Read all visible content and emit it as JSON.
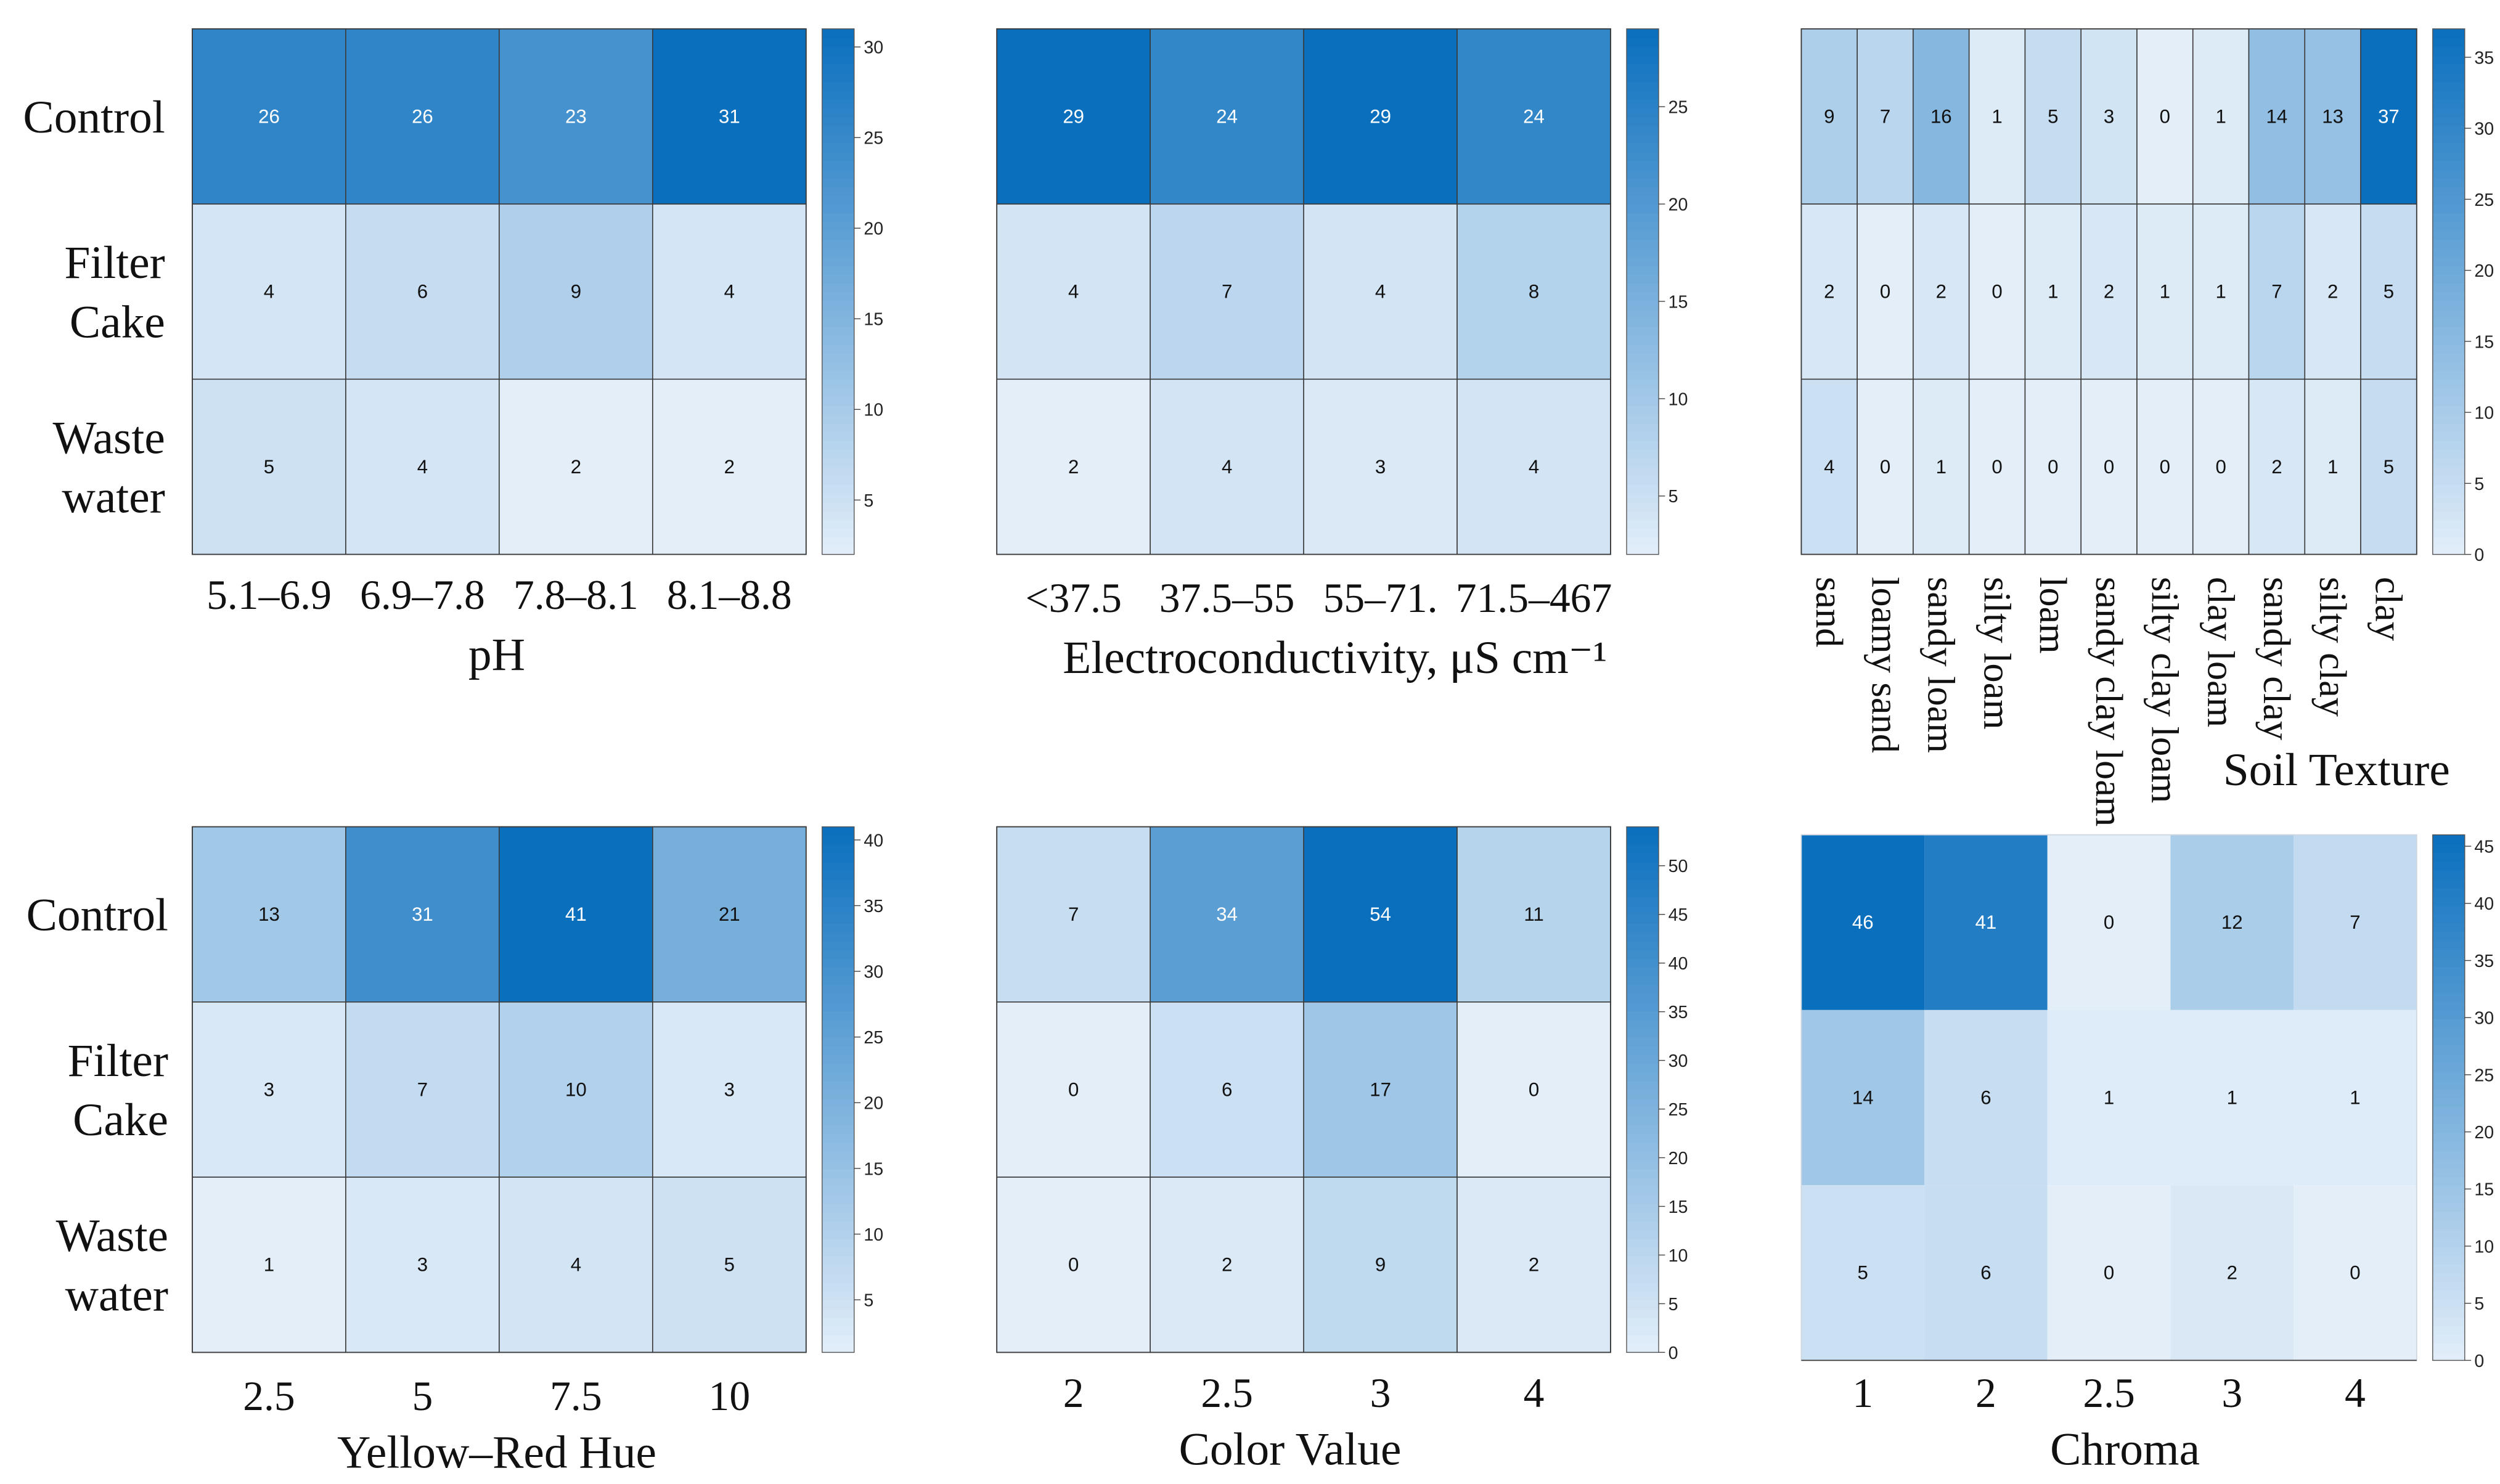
{
  "row_labels": [
    [
      "Control"
    ],
    [
      "Filter",
      "Cake"
    ],
    [
      "Waste",
      "water"
    ]
  ],
  "color_scale": {
    "low": "#e3eef9",
    "high": "#0a6fbd"
  },
  "chart_data": [
    {
      "type": "heatmap",
      "xlabel": "pH",
      "categories": [
        "5.1–6.9",
        "6.9–7.8",
        "7.8–8.1",
        "8.1–8.8"
      ],
      "values": [
        [
          26,
          26,
          23,
          31
        ],
        [
          4,
          6,
          9,
          4
        ],
        [
          5,
          4,
          2,
          2
        ]
      ],
      "colorbar": {
        "ticks": [
          5,
          10,
          15,
          20,
          25,
          30
        ],
        "range": [
          2,
          31
        ]
      }
    },
    {
      "type": "heatmap",
      "xlabel": "Electroconductivity, μS cm⁻¹",
      "categories": [
        "<37.5",
        "37.5–55",
        "55–71.",
        "71.5–467"
      ],
      "values": [
        [
          29,
          24,
          29,
          24
        ],
        [
          4,
          7,
          4,
          8
        ],
        [
          2,
          4,
          3,
          4
        ]
      ],
      "colorbar": {
        "ticks": [
          5,
          10,
          15,
          20,
          25
        ],
        "range": [
          2,
          29
        ]
      }
    },
    {
      "type": "heatmap",
      "xlabel": "Soil Texture",
      "categories": [
        "sand",
        "loamy sand",
        "sandy loam",
        "silty loam",
        "loam",
        "sandy clay loam",
        "silty clay loam",
        "clay loam",
        "sandy clay",
        "silty clay",
        "clay"
      ],
      "values": [
        [
          9,
          7,
          16,
          1,
          5,
          3,
          0,
          1,
          14,
          13,
          37
        ],
        [
          2,
          0,
          2,
          0,
          1,
          2,
          1,
          1,
          7,
          2,
          5
        ],
        [
          4,
          0,
          1,
          0,
          0,
          0,
          0,
          0,
          2,
          1,
          5
        ]
      ],
      "colorbar": {
        "ticks": [
          0,
          5,
          10,
          15,
          20,
          25,
          30,
          35
        ],
        "range": [
          0,
          37
        ]
      }
    },
    {
      "type": "heatmap",
      "xlabel": "Yellow–Red Hue",
      "categories": [
        "2.5",
        "5",
        "7.5",
        "10"
      ],
      "values": [
        [
          13,
          31,
          41,
          21
        ],
        [
          3,
          7,
          10,
          3
        ],
        [
          1,
          3,
          4,
          5
        ]
      ],
      "colorbar": {
        "ticks": [
          5,
          10,
          15,
          20,
          25,
          30,
          35,
          40
        ],
        "range": [
          1,
          41
        ]
      }
    },
    {
      "type": "heatmap",
      "xlabel": "Color Value",
      "categories": [
        "2",
        "2.5",
        "3",
        "4"
      ],
      "values": [
        [
          7,
          34,
          54,
          11
        ],
        [
          0,
          6,
          17,
          0
        ],
        [
          0,
          2,
          9,
          2
        ]
      ],
      "colorbar": {
        "ticks": [
          0,
          5,
          10,
          15,
          20,
          25,
          30,
          35,
          40,
          45,
          50
        ],
        "range": [
          0,
          54
        ]
      }
    },
    {
      "type": "heatmap",
      "xlabel": "Chroma",
      "categories": [
        "1",
        "2",
        "2.5",
        "3",
        "4"
      ],
      "values": [
        [
          46,
          41,
          0,
          12,
          7
        ],
        [
          14,
          6,
          1,
          1,
          1
        ],
        [
          5,
          6,
          0,
          2,
          0
        ]
      ],
      "colorbar": {
        "ticks": [
          0,
          5,
          10,
          15,
          20,
          25,
          30,
          35,
          40,
          45
        ],
        "range": [
          0,
          46
        ]
      }
    }
  ]
}
